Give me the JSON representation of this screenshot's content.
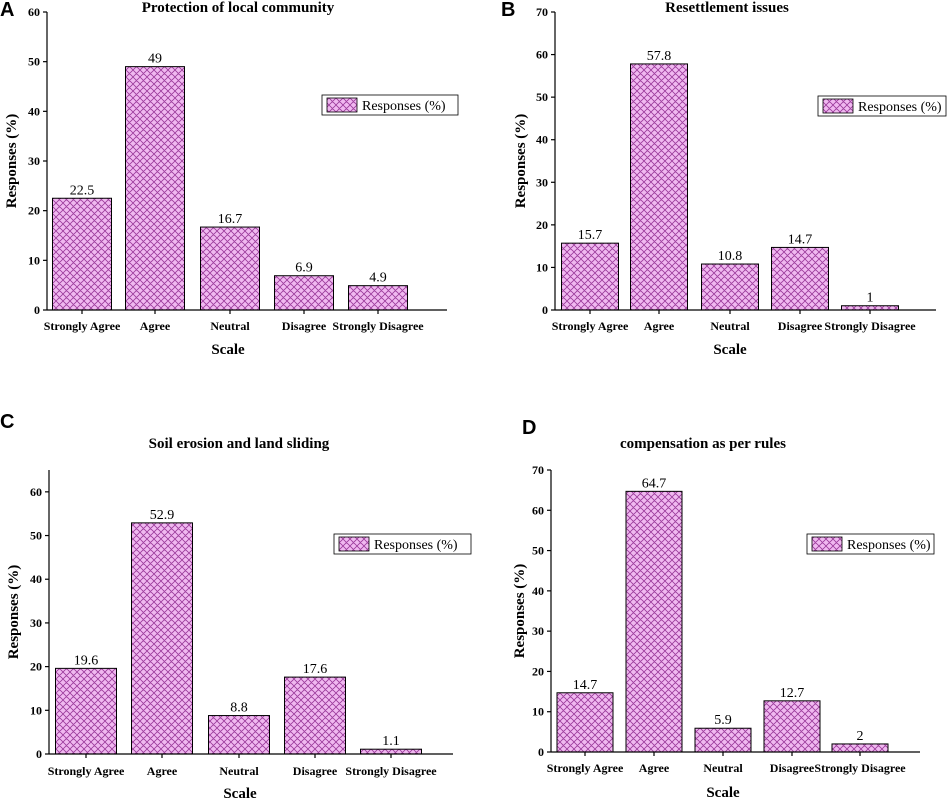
{
  "colors": {
    "bar_fill": "#f0b8f0",
    "hatch": "#9a3a9a"
  },
  "chart_data": [
    {
      "panel": "A",
      "type": "bar",
      "title": "Protection of local community",
      "xlabel": "Scale",
      "ylabel": "Responses (%)",
      "ylim": [
        0,
        60
      ],
      "yticks": [
        0,
        10,
        20,
        30,
        40,
        50,
        60
      ],
      "categories": [
        "Strongly Agree",
        "Agree",
        "Neutral",
        "Disagree",
        "Strongly Disagree"
      ],
      "values": [
        22.5,
        49,
        16.7,
        6.9,
        4.9
      ],
      "legend": "Responses (%)"
    },
    {
      "panel": "B",
      "type": "bar",
      "title": "Resettlement issues",
      "xlabel": "Scale",
      "ylabel": "Responses (%)",
      "ylim": [
        0,
        70
      ],
      "yticks": [
        0,
        10,
        20,
        30,
        40,
        50,
        60,
        70
      ],
      "categories": [
        "Strongly Agree",
        "Agree",
        "Neutral",
        "Disagree",
        "Strongly Disagree"
      ],
      "values": [
        15.7,
        57.8,
        10.8,
        14.7,
        1
      ],
      "legend": "Responses (%)"
    },
    {
      "panel": "C",
      "type": "bar",
      "title": "Soil erosion and land sliding",
      "xlabel": "Scale",
      "ylabel": "Responses (%)",
      "ylim": [
        0,
        65
      ],
      "yticks": [
        0,
        10,
        20,
        30,
        40,
        50,
        60
      ],
      "categories": [
        "Strongly Agree",
        "Agree",
        "Neutral",
        "Disagree",
        "Strongly Disagree"
      ],
      "values": [
        19.6,
        52.9,
        8.8,
        17.6,
        1.1
      ],
      "legend": "Responses (%)"
    },
    {
      "panel": "D",
      "type": "bar",
      "title": "compensation as per rules",
      "xlabel": "Scale",
      "ylabel": "Responses (%)",
      "ylim": [
        0,
        70
      ],
      "yticks": [
        0,
        10,
        20,
        30,
        40,
        50,
        60,
        70
      ],
      "categories": [
        "Strongly Agree",
        "Agree",
        "Neutral",
        "Disagree",
        "Strongly Disagree"
      ],
      "values": [
        14.7,
        64.7,
        5.9,
        12.7,
        2
      ],
      "legend": "Responses (%)"
    }
  ]
}
